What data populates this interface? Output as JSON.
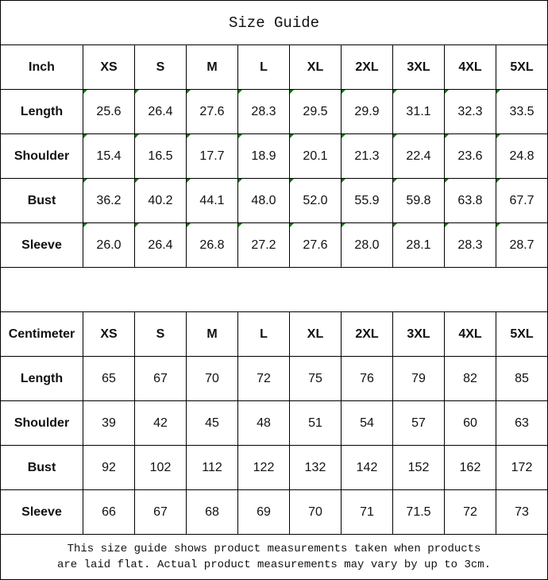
{
  "title": "Size Guide",
  "sizes": [
    "XS",
    "S",
    "M",
    "L",
    "XL",
    "2XL",
    "3XL",
    "4XL",
    "5XL"
  ],
  "inch": {
    "unit_label": "Inch",
    "rows": [
      {
        "label": "Length",
        "values": [
          "25.6",
          "26.4",
          "27.6",
          "28.3",
          "29.5",
          "29.9",
          "31.1",
          "32.3",
          "33.5"
        ]
      },
      {
        "label": "Shoulder",
        "values": [
          "15.4",
          "16.5",
          "17.7",
          "18.9",
          "20.1",
          "21.3",
          "22.4",
          "23.6",
          "24.8"
        ]
      },
      {
        "label": "Bust",
        "values": [
          "36.2",
          "40.2",
          "44.1",
          "48.0",
          "52.0",
          "55.9",
          "59.8",
          "63.8",
          "67.7"
        ]
      },
      {
        "label": "Sleeve",
        "values": [
          "26.0",
          "26.4",
          "26.8",
          "27.2",
          "27.6",
          "28.0",
          "28.1",
          "28.3",
          "28.7"
        ]
      }
    ]
  },
  "cm": {
    "unit_label": "Centimeter",
    "rows": [
      {
        "label": "Length",
        "values": [
          "65",
          "67",
          "70",
          "72",
          "75",
          "76",
          "79",
          "82",
          "85"
        ]
      },
      {
        "label": "Shoulder",
        "values": [
          "39",
          "42",
          "45",
          "48",
          "51",
          "54",
          "57",
          "60",
          "63"
        ]
      },
      {
        "label": "Bust",
        "values": [
          "92",
          "102",
          "112",
          "122",
          "132",
          "142",
          "152",
          "162",
          "172"
        ]
      },
      {
        "label": "Sleeve",
        "values": [
          "66",
          "67",
          "68",
          "69",
          "70",
          "71",
          "71.5",
          "72",
          "73"
        ]
      }
    ]
  },
  "note_line1": "This size guide shows product measurements taken when products",
  "note_line2": "are laid flat. Actual product measurements may vary by up to 3cm.",
  "colors": {
    "error_marker": "#0a7a0a",
    "border": "#000000"
  }
}
